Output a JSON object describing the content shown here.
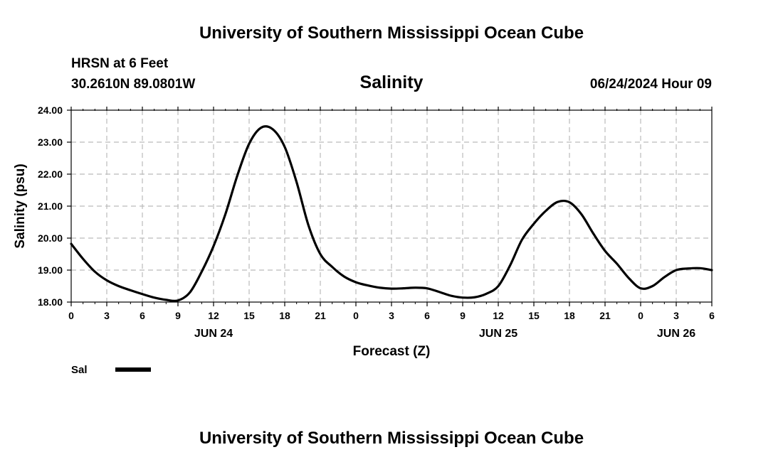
{
  "header": {
    "title": "University of Southern Mississippi Ocean Cube",
    "station": "HRSN at 6 Feet",
    "coords": "30.2610N  89.0801W",
    "timestamp": "06/24/2024 Hour 09"
  },
  "footer": {
    "title": "University of Southern Mississippi Ocean Cube"
  },
  "colors": {
    "line": "#000000",
    "grid": "#bbbbbb"
  },
  "chart_data": {
    "type": "line",
    "title": "Salinity",
    "xlabel": "Forecast (Z)",
    "ylabel": "Salinity (psu)",
    "ylim": [
      18.0,
      24.0
    ],
    "yticks": [
      "18.00",
      "19.00",
      "20.00",
      "21.00",
      "22.00",
      "23.00",
      "24.00"
    ],
    "xlim_hours": [
      0,
      54
    ],
    "xtick_labels": [
      "0",
      "3",
      "6",
      "9",
      "12",
      "15",
      "18",
      "21",
      "0",
      "3",
      "6",
      "9",
      "12",
      "15",
      "18",
      "21",
      "0",
      "3",
      "6"
    ],
    "day_labels": [
      {
        "label": "JUN 24",
        "hour": 12
      },
      {
        "label": "JUN 25",
        "hour": 36
      },
      {
        "label": "JUN 26",
        "hour": 51
      }
    ],
    "grid": true,
    "legend": [
      {
        "name": "Sal",
        "position": "bottom-left"
      }
    ],
    "series": [
      {
        "name": "Sal",
        "x": [
          0,
          1,
          2,
          3,
          4,
          5,
          6,
          7,
          8,
          9,
          10,
          11,
          12,
          13,
          14,
          15,
          16,
          17,
          18,
          19,
          20,
          21,
          22,
          23,
          24,
          25,
          26,
          27,
          28,
          29,
          30,
          31,
          32,
          33,
          34,
          35,
          36,
          37,
          38,
          39,
          40,
          41,
          42,
          43,
          44,
          45,
          46,
          47,
          48,
          49,
          50,
          51,
          52,
          53,
          54
        ],
        "values": [
          19.82,
          19.35,
          18.95,
          18.68,
          18.5,
          18.37,
          18.25,
          18.14,
          18.07,
          18.05,
          18.3,
          18.95,
          19.75,
          20.75,
          21.95,
          22.95,
          23.45,
          23.4,
          22.85,
          21.75,
          20.4,
          19.5,
          19.1,
          18.8,
          18.62,
          18.52,
          18.45,
          18.42,
          18.43,
          18.45,
          18.43,
          18.32,
          18.2,
          18.14,
          18.15,
          18.26,
          18.5,
          19.15,
          19.95,
          20.45,
          20.85,
          21.13,
          21.12,
          20.75,
          20.15,
          19.6,
          19.2,
          18.75,
          18.43,
          18.5,
          18.78,
          19.0,
          19.05,
          19.06,
          19.0
        ]
      }
    ]
  }
}
